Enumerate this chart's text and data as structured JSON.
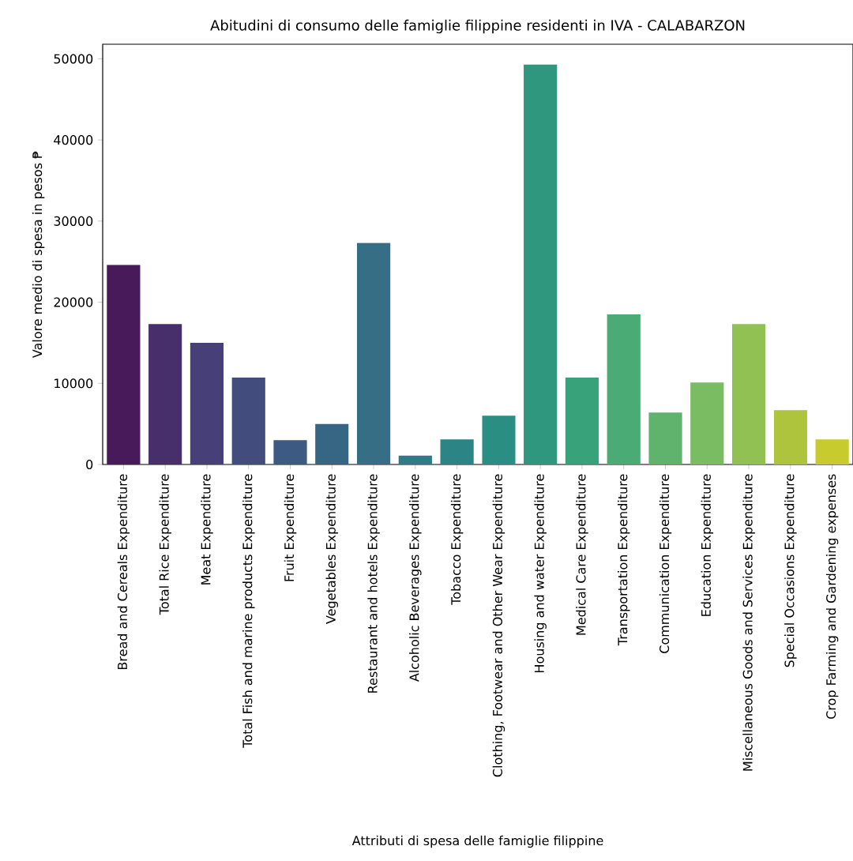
{
  "chart_data": {
    "type": "bar",
    "title": "Abitudini di consumo delle famiglie filippine residenti in IVA - CALABARZON",
    "xlabel": "Attributi di spesa delle famiglie filippine",
    "ylabel": "Valore medio di spesa in pesos ₱",
    "categories": [
      "Bread and Cereals Expenditure",
      "Total Rice Expenditure",
      "Meat Expenditure",
      "Total Fish and  marine products Expenditure",
      "Fruit Expenditure",
      "Vegetables Expenditure",
      "Restaurant and hotels Expenditure",
      "Alcoholic Beverages Expenditure",
      "Tobacco Expenditure",
      "Clothing, Footwear and Other Wear Expenditure",
      "Housing and water Expenditure",
      "Medical Care Expenditure",
      "Transportation Expenditure",
      "Communication Expenditure",
      "Education Expenditure",
      "Miscellaneous Goods and Services Expenditure",
      "Special Occasions Expenditure",
      "Crop Farming and Gardening expenses"
    ],
    "values": [
      24600,
      17300,
      15000,
      10700,
      3000,
      5000,
      27300,
      1100,
      3100,
      6000,
      49300,
      10700,
      18500,
      6400,
      10100,
      17300,
      6700,
      3100
    ],
    "colors": [
      "#481a5a",
      "#472f6c",
      "#463f78",
      "#424d7e",
      "#3d5a82",
      "#376685",
      "#366f85",
      "#2f7b86",
      "#2d8484",
      "#2a8f82",
      "#2e977e",
      "#38a27b",
      "#4aab74",
      "#5fb36c",
      "#79bc62",
      "#91c152",
      "#adc43c",
      "#c8cb2e"
    ],
    "ylim": [
      0,
      51800
    ],
    "yticks": [
      0,
      10000,
      20000,
      30000,
      40000,
      50000
    ]
  }
}
